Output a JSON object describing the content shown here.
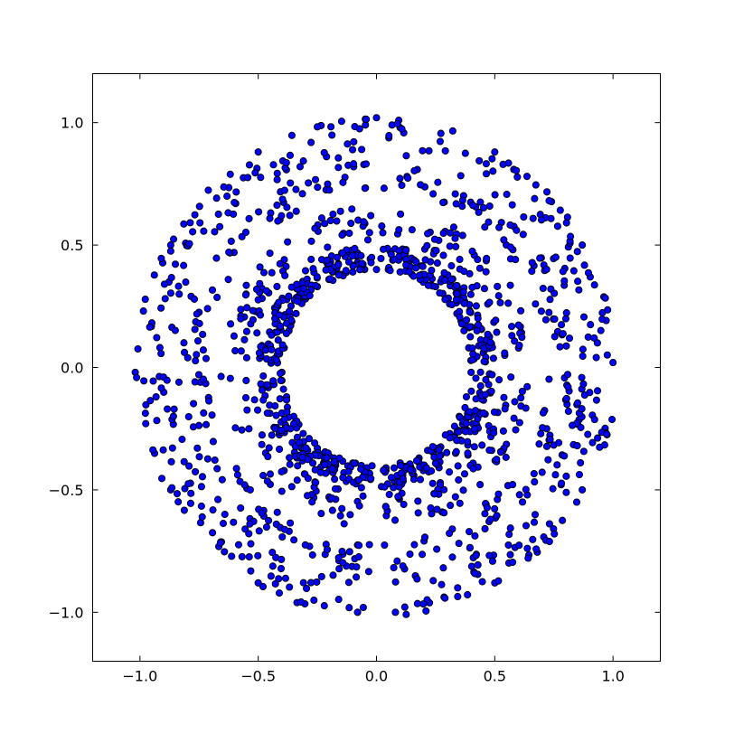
{
  "chart_data": {
    "type": "scatter",
    "title": "",
    "xlabel": "",
    "ylabel": "",
    "xlim": [
      -1.2,
      1.2
    ],
    "ylim": [
      -1.2,
      1.2
    ],
    "xticks": [
      {
        "value": -1.0,
        "label": "−1.0"
      },
      {
        "value": -0.5,
        "label": "−0.5"
      },
      {
        "value": 0.0,
        "label": "0.0"
      },
      {
        "value": 0.5,
        "label": "0.5"
      },
      {
        "value": 1.0,
        "label": "1.0"
      }
    ],
    "yticks": [
      {
        "value": -1.0,
        "label": "−1.0"
      },
      {
        "value": -0.5,
        "label": "−0.5"
      },
      {
        "value": 0.0,
        "label": "0.0"
      },
      {
        "value": 0.5,
        "label": "0.5"
      },
      {
        "value": 1.0,
        "label": "1.0"
      }
    ],
    "grid": false,
    "legend": "none",
    "marker_color": "#0000ff",
    "marker_edge_color": "#000000",
    "description_of_pattern": {
      "inner_radius": 0.4,
      "outer_radius": 1.02,
      "gap_angles_deg": [
        0,
        90,
        180,
        270
      ]
    },
    "series": [
      {
        "points": [
          [
            0.0,
            0.4
          ],
          [
            0.05,
            0.4
          ],
          [
            -0.05,
            0.4
          ],
          [
            0.1,
            0.39
          ],
          [
            -0.1,
            0.39
          ],
          [
            0.15,
            0.38
          ],
          [
            -0.15,
            0.38
          ],
          [
            0.2,
            0.36
          ],
          [
            -0.2,
            0.36
          ],
          [
            0.25,
            0.33
          ],
          [
            -0.25,
            0.33
          ],
          [
            0.3,
            0.28
          ],
          [
            -0.3,
            0.28
          ],
          [
            0.34,
            0.22
          ],
          [
            -0.34,
            0.22
          ],
          [
            0.37,
            0.15
          ],
          [
            -0.37,
            0.15
          ],
          [
            0.39,
            0.08
          ],
          [
            -0.39,
            0.08
          ],
          [
            0.4,
            -0.02
          ],
          [
            -0.4,
            -0.02
          ],
          [
            0.38,
            -0.12
          ],
          [
            -0.38,
            -0.12
          ],
          [
            0.35,
            -0.2
          ],
          [
            -0.35,
            -0.2
          ],
          [
            0.31,
            -0.27
          ],
          [
            -0.31,
            -0.27
          ],
          [
            0.25,
            -0.33
          ],
          [
            -0.25,
            -0.33
          ],
          [
            0.18,
            -0.37
          ],
          [
            -0.18,
            -0.37
          ],
          [
            0.1,
            -0.39
          ],
          [
            -0.1,
            -0.39
          ],
          [
            0.04,
            -0.41
          ],
          [
            -0.04,
            -0.41
          ],
          [
            0.0,
            1.02
          ],
          [
            0.5,
            0.88
          ],
          [
            -0.5,
            0.88
          ],
          [
            0.87,
            0.5
          ],
          [
            -0.87,
            0.5
          ],
          [
            1.0,
            0.02
          ],
          [
            -1.02,
            -0.02
          ],
          [
            0.87,
            -0.5
          ],
          [
            -0.87,
            -0.5
          ],
          [
            0.5,
            -0.88
          ],
          [
            -0.5,
            -0.88
          ],
          [
            0.08,
            -1.0
          ],
          [
            -0.08,
            -1.0
          ]
        ]
      }
    ]
  }
}
